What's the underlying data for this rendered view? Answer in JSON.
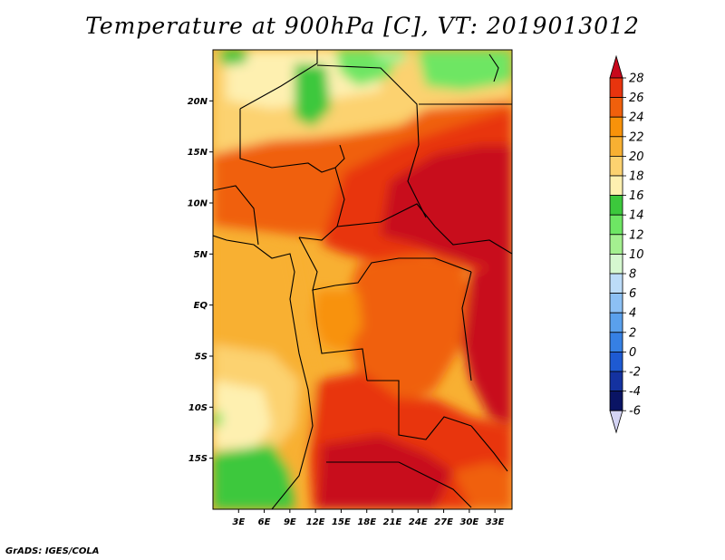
{
  "title": "Temperature at 900hPa [C], VT: 2019013012",
  "credit": "GrADS: IGES/COLA",
  "map": {
    "lon_ticks": [
      "3E",
      "6E",
      "9E",
      "12E",
      "15E",
      "18E",
      "21E",
      "24E",
      "27E",
      "30E",
      "33E"
    ],
    "lat_ticks": [
      "20N",
      "15N",
      "10N",
      "5N",
      "EQ",
      "5S",
      "10S",
      "15S"
    ],
    "lon_range": [
      0,
      35
    ],
    "lat_range": [
      -20,
      25
    ]
  },
  "colorbar": {
    "levels": [
      "28",
      "26",
      "24",
      "22",
      "20",
      "18",
      "16",
      "14",
      "12",
      "10",
      "8",
      "6",
      "4",
      "2",
      "0",
      "-2",
      "-4",
      "-6"
    ],
    "colors": [
      "#c8081c",
      "#e8340e",
      "#f0600c",
      "#f8920a",
      "#f8b032",
      "#fcd270",
      "#fef0b0",
      "#3cc83c",
      "#6ee664",
      "#a4f090",
      "#d6f8d0",
      "#bcdcf8",
      "#8cc0f4",
      "#5aa0ec",
      "#3680e4",
      "#1e5ad2",
      "#1432a0",
      "#0a1464",
      "#d4d4f4"
    ]
  }
}
